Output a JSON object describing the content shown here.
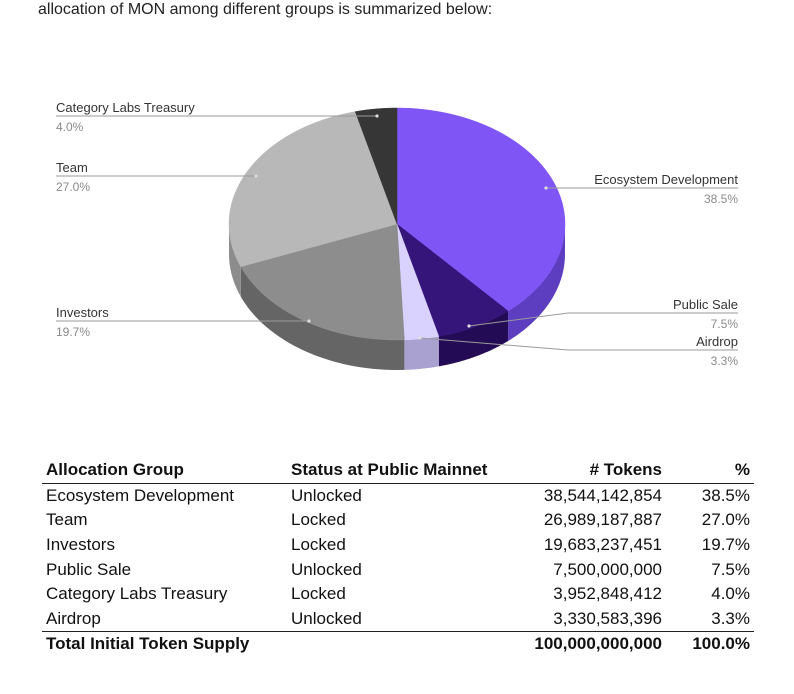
{
  "intro_text": "allocation of MON among different groups is summarized below:",
  "chart_data": {
    "type": "pie",
    "style": "3d",
    "slices": [
      {
        "name": "Ecosystem Development",
        "value": 38.5,
        "label": "38.5%",
        "color": "#7f55f5",
        "side_color": "#5d3dc0"
      },
      {
        "name": "Public Sale",
        "value": 7.5,
        "label": "7.5%",
        "color": "#35157a",
        "side_color": "#230c55"
      },
      {
        "name": "Airdrop",
        "value": 3.3,
        "label": "3.3%",
        "color": "#d9d2ff",
        "side_color": "#a9a1cf"
      },
      {
        "name": "Investors",
        "value": 19.7,
        "label": "19.7%",
        "color": "#8d8d8d",
        "side_color": "#656565"
      },
      {
        "name": "Team",
        "value": 27.0,
        "label": "27.0%",
        "color": "#b8b8b8",
        "side_color": "#8c8c8c"
      },
      {
        "name": "Category Labs Treasury",
        "value": 4.0,
        "label": "4.0%",
        "color": "#363636",
        "side_color": "#1f1f1f"
      }
    ]
  },
  "table": {
    "headers": {
      "group": "Allocation Group",
      "status": "Status at Public Mainnet",
      "tokens": "# Tokens",
      "pct": "%"
    },
    "rows": [
      {
        "group": "Ecosystem Development",
        "status": "Unlocked",
        "tokens": "38,544,142,854",
        "pct": "38.5%"
      },
      {
        "group": "Team",
        "status": "Locked",
        "tokens": "26,989,187,887",
        "pct": "27.0%"
      },
      {
        "group": "Investors",
        "status": "Locked",
        "tokens": "19,683,237,451",
        "pct": "19.7%"
      },
      {
        "group": "Public Sale",
        "status": "Unlocked",
        "tokens": "7,500,000,000",
        "pct": "7.5%"
      },
      {
        "group": "Category Labs Treasury",
        "status": "Locked",
        "tokens": "3,952,848,412",
        "pct": "4.0%"
      },
      {
        "group": "Airdrop",
        "status": "Unlocked",
        "tokens": "3,330,583,396",
        "pct": "3.3%"
      }
    ],
    "total": {
      "label": "Total Initial Token Supply",
      "tokens": "100,000,000,000",
      "pct": "100.0%"
    }
  }
}
